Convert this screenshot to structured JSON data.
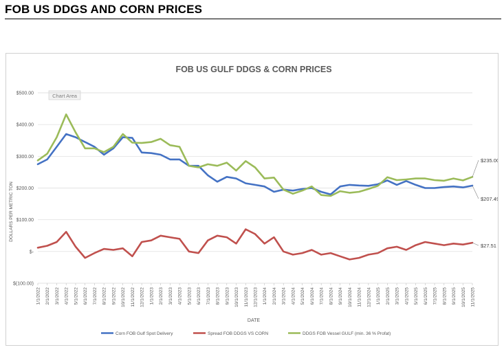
{
  "page": {
    "title": "FOB US DDGS AND CORN PRICES"
  },
  "chart_area_label": "Chart Area",
  "chart_data": {
    "type": "line",
    "title": "FOB US GULF DDGS & CORN PRICES",
    "xlabel": "DATE",
    "ylabel": "DOLLARS PER METRIC TON",
    "ylim": [
      -100,
      500
    ],
    "yticks": [
      {
        "value": 500,
        "label": "$500.00"
      },
      {
        "value": 400,
        "label": "$400.00"
      },
      {
        "value": 300,
        "label": "$300.00"
      },
      {
        "value": 200,
        "label": "$200.00"
      },
      {
        "value": 100,
        "label": "$100.00"
      },
      {
        "value": 0,
        "label": "$-"
      },
      {
        "value": -100,
        "label": "$(100.00)"
      }
    ],
    "grid": true,
    "legend_position": "bottom",
    "categories": [
      "1/1/2022",
      "2/1/2022",
      "3/1/2022",
      "4/1/2022",
      "5/1/2022",
      "6/1/2022",
      "7/1/2022",
      "8/1/2022",
      "9/1/2022",
      "10/1/2022",
      "11/1/2022",
      "12/1/2022",
      "1/1/2023",
      "2/1/2023",
      "3/1/2023",
      "4/1/2023",
      "5/1/2023",
      "6/1/2023",
      "7/1/2023",
      "8/1/2023",
      "9/1/2023",
      "10/1/2023",
      "11/1/2023",
      "12/1/2023",
      "1/1/2024",
      "2/1/2024",
      "3/1/2024",
      "4/1/2024",
      "5/1/2024",
      "6/1/2024",
      "7/1/2024",
      "8/1/2024",
      "9/1/2024",
      "10/1/2024",
      "11/1/2024",
      "12/1/2024",
      "1/1/2025",
      "2/1/2025",
      "3/1/2025",
      "4/1/2025",
      "5/1/2025",
      "6/1/2025",
      "7/1/2025",
      "8/1/2025",
      "9/1/2025",
      "10/1/2025",
      "11/1/2025"
    ],
    "series": [
      {
        "name": "Corn FOB Gulf Spot Delivery",
        "color": "#4472c4",
        "values": [
          275,
          290,
          330,
          370,
          360,
          345,
          330,
          305,
          325,
          360,
          358,
          312,
          310,
          305,
          290,
          290,
          270,
          270,
          240,
          220,
          235,
          230,
          215,
          210,
          205,
          188,
          195,
          192,
          197,
          200,
          188,
          180,
          205,
          210,
          208,
          207,
          212,
          224,
          210,
          222,
          210,
          200,
          200,
          203,
          205,
          202,
          207.49
        ],
        "end_label": "$207.49"
      },
      {
        "name": "Spread FOB DDGS VS CORN",
        "color": "#c0504d",
        "values": [
          12,
          18,
          30,
          62,
          15,
          -20,
          -5,
          8,
          5,
          10,
          -15,
          30,
          35,
          50,
          45,
          40,
          0,
          -5,
          35,
          50,
          45,
          25,
          70,
          55,
          25,
          45,
          0,
          -10,
          -5,
          5,
          -10,
          -5,
          -15,
          -25,
          -20,
          -10,
          -5,
          10,
          15,
          5,
          20,
          30,
          25,
          20,
          25,
          22,
          27.51
        ],
        "end_label": "$27.51"
      },
      {
        "name": "DDGS FOB Vessel GULF  (min. 36 % Profat)",
        "color": "#9bbb59",
        "values": [
          287,
          308,
          360,
          432,
          375,
          325,
          325,
          313,
          330,
          370,
          343,
          342,
          345,
          355,
          335,
          330,
          270,
          265,
          275,
          270,
          280,
          255,
          285,
          265,
          230,
          233,
          195,
          182,
          192,
          205,
          178,
          175,
          190,
          185,
          188,
          197,
          207,
          234,
          225,
          227,
          230,
          230,
          225,
          223,
          230,
          224,
          235
        ],
        "end_label": "$235.00"
      }
    ]
  }
}
